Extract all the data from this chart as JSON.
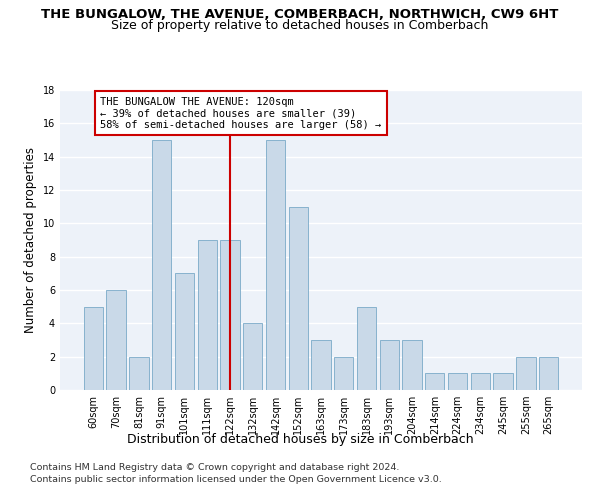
{
  "title": "THE BUNGALOW, THE AVENUE, COMBERBACH, NORTHWICH, CW9 6HT",
  "subtitle": "Size of property relative to detached houses in Comberbach",
  "xlabel": "Distribution of detached houses by size in Comberbach",
  "ylabel": "Number of detached properties",
  "categories": [
    "60sqm",
    "70sqm",
    "81sqm",
    "91sqm",
    "101sqm",
    "111sqm",
    "122sqm",
    "132sqm",
    "142sqm",
    "152sqm",
    "163sqm",
    "173sqm",
    "183sqm",
    "193sqm",
    "204sqm",
    "214sqm",
    "224sqm",
    "234sqm",
    "245sqm",
    "255sqm",
    "265sqm"
  ],
  "values": [
    5,
    6,
    2,
    15,
    7,
    9,
    9,
    4,
    15,
    11,
    3,
    2,
    5,
    3,
    3,
    1,
    1,
    1,
    1,
    2,
    2
  ],
  "bar_color": "#c9d9e8",
  "bar_edge_color": "#7aaac8",
  "vline_index": 6,
  "vline_color": "#cc0000",
  "annotation_line1": "THE BUNGALOW THE AVENUE: 120sqm",
  "annotation_line2": "← 39% of detached houses are smaller (39)",
  "annotation_line3": "58% of semi-detached houses are larger (58) →",
  "annotation_box_color": "#ffffff",
  "annotation_box_edge": "#cc0000",
  "ylim": [
    0,
    18
  ],
  "yticks": [
    0,
    2,
    4,
    6,
    8,
    10,
    12,
    14,
    16,
    18
  ],
  "footer1": "Contains HM Land Registry data © Crown copyright and database right 2024.",
  "footer2": "Contains public sector information licensed under the Open Government Licence v3.0.",
  "bg_color": "#edf2f9",
  "grid_color": "#ffffff",
  "title_fontsize": 9.5,
  "subtitle_fontsize": 9,
  "ylabel_fontsize": 8.5,
  "xlabel_fontsize": 9,
  "tick_fontsize": 7,
  "annotation_fontsize": 7.5,
  "footer_fontsize": 6.8
}
